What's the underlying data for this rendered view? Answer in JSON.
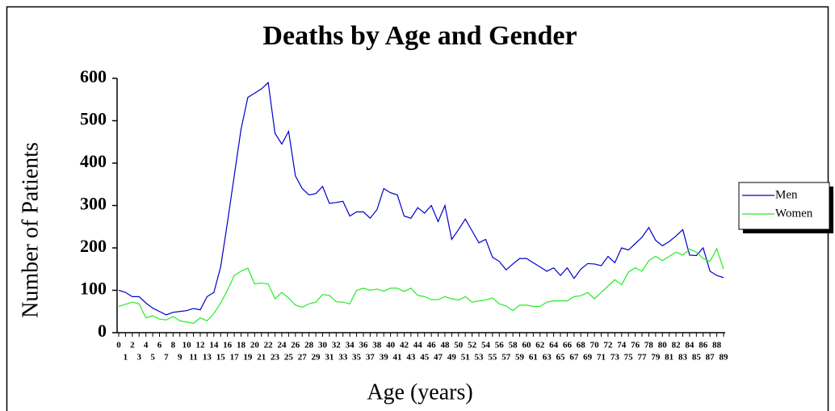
{
  "chart_data": {
    "type": "line",
    "title": "Deaths by Age and Gender",
    "x_label": "Age (years)",
    "y_label": "Number of Patients",
    "categories": [
      "0",
      "1",
      "2",
      "3",
      "4",
      "5",
      "6",
      "7",
      "8",
      "9",
      "10",
      "11",
      "12",
      "13",
      "14",
      "15",
      "16",
      "17",
      "18",
      "19",
      "20",
      "21",
      "22",
      "23",
      "24",
      "25",
      "26",
      "27",
      "28",
      "29",
      "30",
      "31",
      "32",
      "33",
      "34",
      "35",
      "36",
      "37",
      "38",
      "39",
      "40",
      "41",
      "42",
      "43",
      "44",
      "45",
      "46",
      "47",
      "48",
      "49",
      "50",
      "51",
      "52",
      "53",
      "54",
      "55",
      "56",
      "57",
      "58",
      "59",
      "60",
      "61",
      "62",
      "63",
      "64",
      "65",
      "66",
      "67",
      "68",
      "69",
      "70",
      "71",
      "72",
      "73",
      "74",
      "75",
      "76",
      "77",
      "78",
      "79",
      "80",
      "81",
      "82",
      "83",
      "84",
      "85",
      "86",
      "87",
      "88",
      "89"
    ],
    "series": [
      {
        "name": "Men",
        "color": "#0000cc",
        "values": [
          100,
          95,
          85,
          85,
          70,
          58,
          50,
          42,
          48,
          50,
          52,
          57,
          54,
          85,
          95,
          155,
          260,
          370,
          480,
          555,
          565,
          575,
          590,
          470,
          445,
          475,
          370,
          340,
          325,
          328,
          345,
          305,
          307,
          310,
          275,
          285,
          285,
          270,
          290,
          340,
          330,
          325,
          275,
          270,
          295,
          282,
          300,
          262,
          300,
          220,
          243,
          268,
          240,
          212,
          220,
          178,
          168,
          148,
          162,
          175,
          175,
          165,
          155,
          145,
          153,
          135,
          153,
          128,
          150,
          163,
          162,
          158,
          180,
          165,
          200,
          195,
          210,
          225,
          248,
          218,
          205,
          215,
          228,
          243,
          183,
          182,
          200,
          145,
          135,
          130
        ]
      },
      {
        "name": "Women",
        "color": "#22ee22",
        "values": [
          62,
          67,
          72,
          68,
          35,
          40,
          32,
          30,
          38,
          28,
          25,
          22,
          35,
          28,
          45,
          70,
          100,
          135,
          145,
          152,
          115,
          117,
          115,
          80,
          95,
          82,
          65,
          60,
          68,
          72,
          90,
          88,
          73,
          72,
          68,
          100,
          105,
          100,
          103,
          98,
          105,
          105,
          97,
          105,
          88,
          85,
          78,
          78,
          85,
          80,
          77,
          85,
          72,
          75,
          77,
          82,
          68,
          63,
          52,
          65,
          65,
          62,
          62,
          72,
          75,
          75,
          75,
          85,
          87,
          95,
          80,
          95,
          110,
          125,
          113,
          143,
          153,
          145,
          170,
          180,
          170,
          180,
          190,
          183,
          197,
          190,
          175,
          168,
          198,
          150
        ]
      }
    ],
    "ylim": [
      0,
      600
    ],
    "yticks": [
      0,
      100,
      200,
      300,
      400,
      500,
      600
    ],
    "grid": false,
    "legend": "right"
  }
}
